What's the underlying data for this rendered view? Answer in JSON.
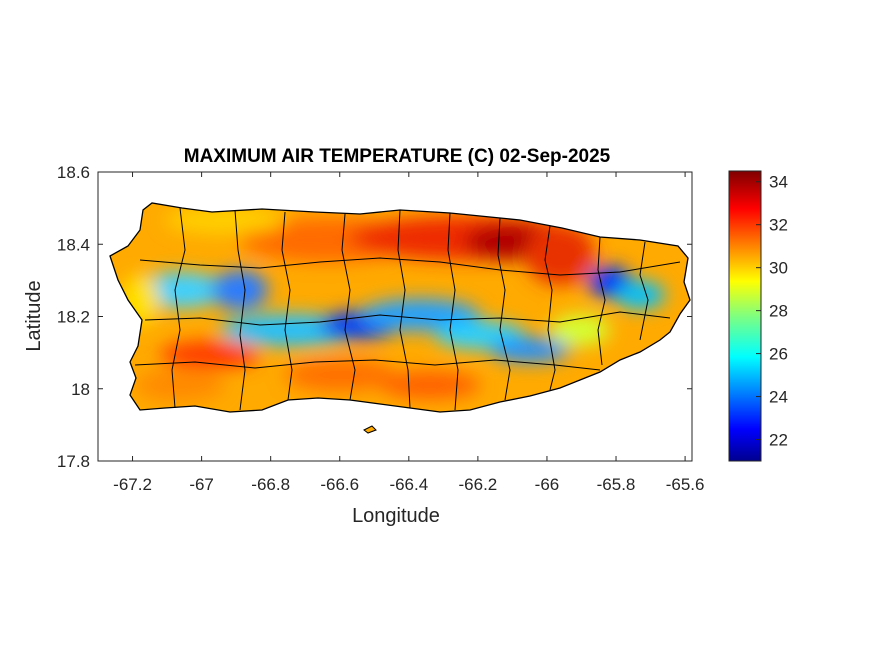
{
  "figure": {
    "title": "MAXIMUM AIR TEMPERATURE (C) 02-Sep-2025",
    "xlabel": "Longitude",
    "ylabel": "Latitude"
  },
  "map": {
    "region": "Puerto Rico",
    "xlim": [
      -67.3,
      -65.58
    ],
    "ylim": [
      17.8,
      18.6
    ],
    "x_ticks": [
      {
        "value": -67.2,
        "label": "-67.2"
      },
      {
        "value": -67.0,
        "label": "-67"
      },
      {
        "value": -66.8,
        "label": "-66.8"
      },
      {
        "value": -66.6,
        "label": "-66.6"
      },
      {
        "value": -66.4,
        "label": "-66.4"
      },
      {
        "value": -66.2,
        "label": "-66.2"
      },
      {
        "value": -66.0,
        "label": "-66"
      },
      {
        "value": -65.8,
        "label": "-65.8"
      },
      {
        "value": -65.6,
        "label": "-65.6"
      }
    ],
    "y_ticks": [
      {
        "value": 17.8,
        "label": "17.8"
      },
      {
        "value": 18.0,
        "label": "18"
      },
      {
        "value": 18.2,
        "label": "18.2"
      },
      {
        "value": 18.4,
        "label": "18.4"
      },
      {
        "value": 18.6,
        "label": "18.6"
      }
    ],
    "grid": false
  },
  "colorbar": {
    "colormap": "jet",
    "range": [
      21,
      34.5
    ],
    "ticks": [
      {
        "value": 22,
        "label": "22"
      },
      {
        "value": 24,
        "label": "24"
      },
      {
        "value": 26,
        "label": "26"
      },
      {
        "value": 28,
        "label": "28"
      },
      {
        "value": 30,
        "label": "30"
      },
      {
        "value": 32,
        "label": "32"
      },
      {
        "value": 34,
        "label": "34"
      }
    ]
  }
}
